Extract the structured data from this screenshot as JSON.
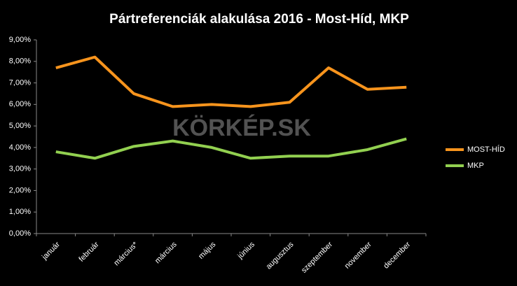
{
  "chart_data": {
    "type": "line",
    "title": "Pártreferenciák alakulása 2016 - Most-Híd, MKP",
    "watermark": "KÖRKÉP.SK",
    "categories": [
      "január",
      "február",
      "március*",
      "március",
      "május",
      "június",
      "augusztus",
      "szeptember",
      "november",
      "december"
    ],
    "series": [
      {
        "name": "MOST-HÍD",
        "color": "#f7941d",
        "values": [
          7.7,
          8.2,
          6.5,
          5.9,
          6.0,
          5.9,
          6.1,
          7.7,
          6.7,
          6.8
        ]
      },
      {
        "name": "MKP",
        "color": "#92d050",
        "values": [
          3.8,
          3.5,
          4.05,
          4.3,
          4.0,
          3.5,
          3.6,
          3.6,
          3.9,
          4.4
        ]
      }
    ],
    "ylim": [
      0,
      9
    ],
    "yticks": [
      {
        "value": 0,
        "label": "0,00%"
      },
      {
        "value": 1,
        "label": "1,00%"
      },
      {
        "value": 2,
        "label": "2,00%"
      },
      {
        "value": 3,
        "label": "3,00%"
      },
      {
        "value": 4,
        "label": "4,00%"
      },
      {
        "value": 5,
        "label": "5,00%"
      },
      {
        "value": 6,
        "label": "6,00%"
      },
      {
        "value": 7,
        "label": "7,00%"
      },
      {
        "value": 8,
        "label": "8,00%"
      },
      {
        "value": 9,
        "label": "9,00%"
      }
    ],
    "grid": false,
    "legend": "right"
  }
}
